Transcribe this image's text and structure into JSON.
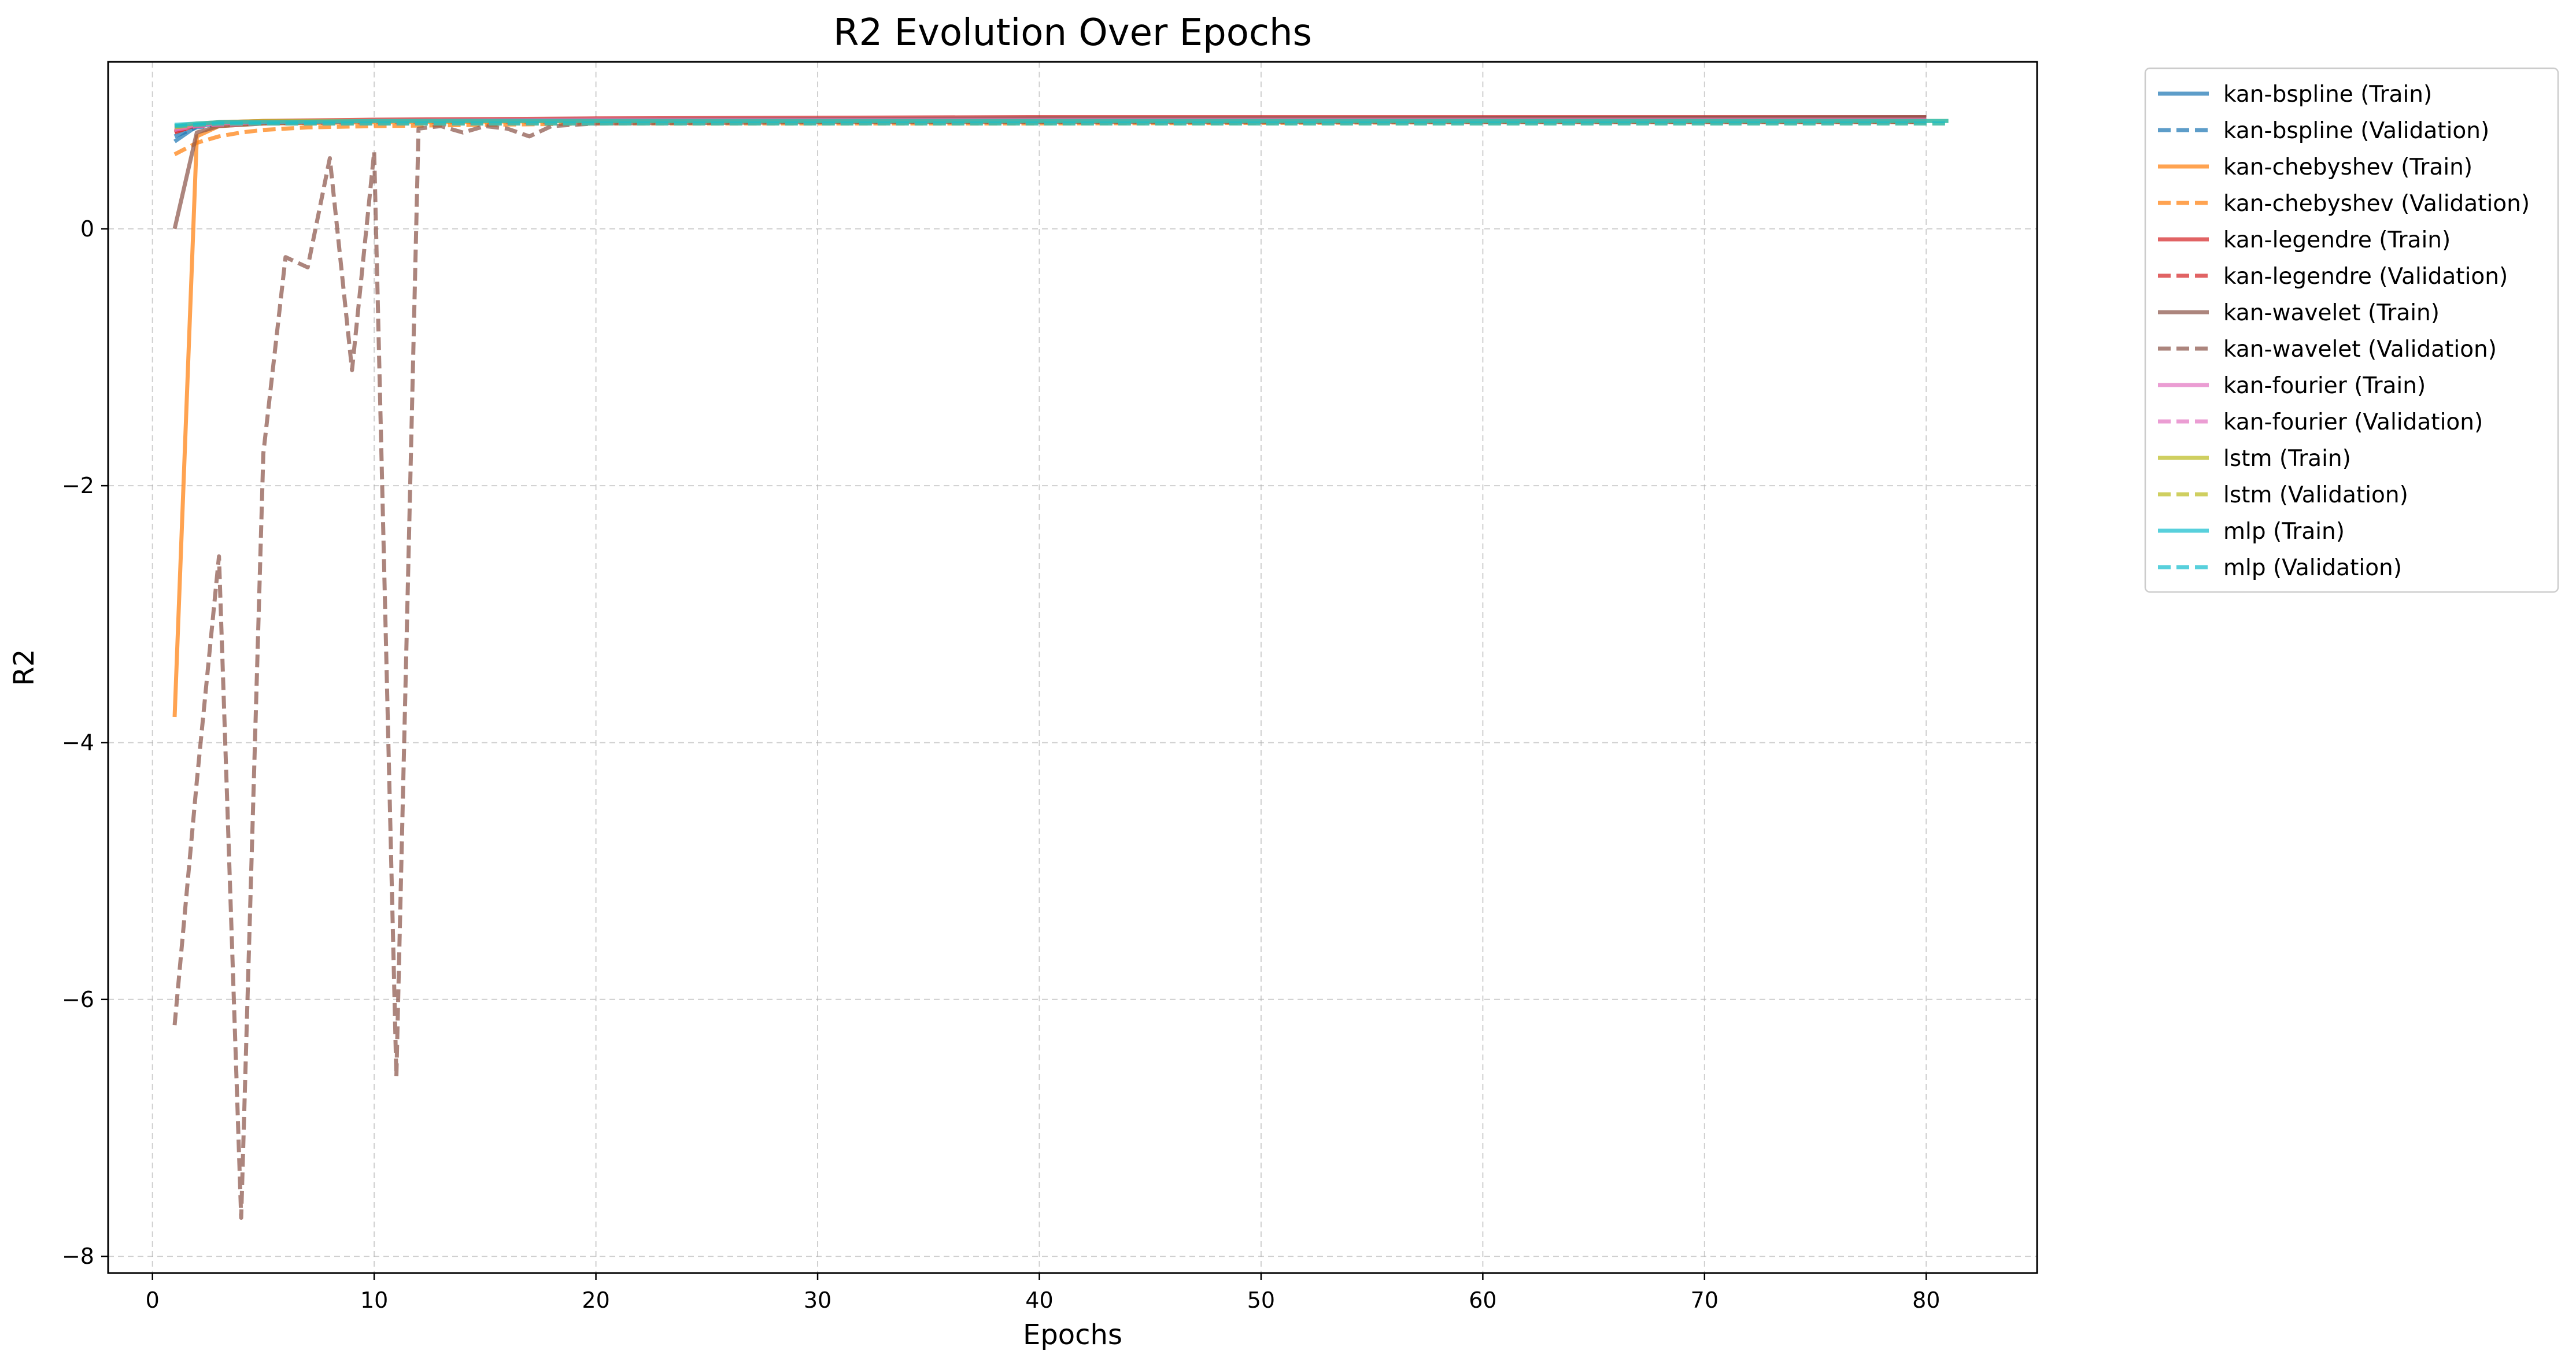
{
  "chart_data": {
    "type": "line",
    "title": "R2 Evolution Over Epochs",
    "xlabel": "Epochs",
    "ylabel": "R2",
    "xlim": [
      -2.0,
      85.0
    ],
    "ylim": [
      -8.13,
      1.3
    ],
    "xticks": [
      0,
      10,
      20,
      30,
      40,
      50,
      60,
      70,
      80
    ],
    "yticks": [
      -8,
      -6,
      -4,
      -2,
      0
    ],
    "grid": true,
    "legend_position": "outside-right-top",
    "series": [
      {
        "name": "kan-bspline (Train)",
        "color": "#1f77b4",
        "dash": "solid",
        "x": [
          1,
          2,
          3,
          5,
          10,
          20,
          40,
          60,
          80
        ],
        "y": [
          0.68,
          0.8,
          0.82,
          0.83,
          0.84,
          0.85,
          0.855,
          0.86,
          0.86
        ]
      },
      {
        "name": "kan-bspline (Validation)",
        "color": "#1f77b4",
        "dash": "dashed",
        "x": [
          1,
          2,
          3,
          5,
          10,
          20,
          40,
          60,
          80
        ],
        "y": [
          0.72,
          0.79,
          0.81,
          0.82,
          0.83,
          0.83,
          0.83,
          0.83,
          0.83
        ]
      },
      {
        "name": "kan-chebyshev (Train)",
        "color": "#ff7f0e",
        "dash": "solid",
        "x": [
          1,
          2,
          3,
          5,
          10,
          20,
          40,
          60,
          80
        ],
        "y": [
          -3.8,
          0.72,
          0.8,
          0.82,
          0.83,
          0.84,
          0.85,
          0.85,
          0.85
        ]
      },
      {
        "name": "kan-chebyshev (Validation)",
        "color": "#ff7f0e",
        "dash": "dashed",
        "x": [
          1,
          2,
          3,
          4,
          5,
          7,
          10,
          15,
          20,
          40,
          60,
          80
        ],
        "y": [
          0.58,
          0.67,
          0.72,
          0.75,
          0.77,
          0.79,
          0.8,
          0.81,
          0.82,
          0.82,
          0.83,
          0.83
        ]
      },
      {
        "name": "kan-legendre (Train)",
        "color": "#d62728",
        "dash": "solid",
        "x": [
          1,
          2,
          3,
          5,
          10,
          20,
          40,
          60,
          80
        ],
        "y": [
          0.75,
          0.81,
          0.83,
          0.84,
          0.85,
          0.86,
          0.87,
          0.87,
          0.87
        ]
      },
      {
        "name": "kan-legendre (Validation)",
        "color": "#d62728",
        "dash": "dashed",
        "x": [
          1,
          2,
          3,
          5,
          10,
          20,
          40,
          60,
          80
        ],
        "y": [
          0.76,
          0.8,
          0.81,
          0.82,
          0.83,
          0.83,
          0.83,
          0.83,
          0.83
        ]
      },
      {
        "name": "kan-wavelet (Train)",
        "color": "#8c564b",
        "dash": "solid",
        "x": [
          1,
          2,
          3,
          5,
          10,
          20,
          40,
          60,
          80
        ],
        "y": [
          0.0,
          0.75,
          0.8,
          0.82,
          0.84,
          0.85,
          0.86,
          0.86,
          0.87
        ]
      },
      {
        "name": "kan-wavelet (Validation)",
        "color": "#8c564b",
        "dash": "dashed",
        "x": [
          1,
          2,
          3,
          4,
          5,
          6,
          7,
          8,
          9,
          10,
          11,
          12,
          13,
          14,
          15,
          16,
          17,
          18,
          20,
          30,
          40,
          50,
          60,
          70,
          80
        ],
        "y": [
          -6.2,
          -4.3,
          -2.55,
          -7.7,
          -1.75,
          -0.22,
          -0.3,
          0.55,
          -1.1,
          0.6,
          -6.6,
          0.78,
          0.8,
          0.75,
          0.8,
          0.78,
          0.72,
          0.8,
          0.82,
          0.83,
          0.83,
          0.83,
          0.83,
          0.83,
          0.83
        ]
      },
      {
        "name": "kan-fourier (Train)",
        "color": "#e377c2",
        "dash": "solid",
        "x": [
          1,
          2,
          3,
          5,
          10,
          20,
          40,
          60,
          80
        ],
        "y": [
          0.78,
          0.81,
          0.82,
          0.83,
          0.84,
          0.85,
          0.85,
          0.85,
          0.85
        ]
      },
      {
        "name": "kan-fourier (Validation)",
        "color": "#e377c2",
        "dash": "dashed",
        "x": [
          1,
          2,
          3,
          5,
          10,
          20,
          40,
          60,
          80
        ],
        "y": [
          0.77,
          0.8,
          0.81,
          0.82,
          0.82,
          0.82,
          0.83,
          0.83,
          0.83
        ]
      },
      {
        "name": "lstm (Train)",
        "color": "#bcbd22",
        "dash": "solid",
        "x": [
          1,
          2,
          3,
          5,
          10,
          20,
          40,
          60,
          81
        ],
        "y": [
          0.8,
          0.82,
          0.83,
          0.84,
          0.84,
          0.84,
          0.84,
          0.84,
          0.84
        ]
      },
      {
        "name": "lstm (Validation)",
        "color": "#bcbd22",
        "dash": "dashed",
        "x": [
          1,
          2,
          3,
          5,
          10,
          20,
          40,
          60,
          81
        ],
        "y": [
          0.79,
          0.81,
          0.82,
          0.82,
          0.82,
          0.82,
          0.82,
          0.82,
          0.82
        ]
      },
      {
        "name": "mlp (Train)",
        "color": "#17becf",
        "dash": "solid",
        "x": [
          1,
          2,
          3,
          5,
          10,
          20,
          40,
          60,
          81
        ],
        "y": [
          0.81,
          0.82,
          0.83,
          0.83,
          0.84,
          0.84,
          0.84,
          0.84,
          0.84
        ]
      },
      {
        "name": "mlp (Validation)",
        "color": "#17becf",
        "dash": "dashed",
        "x": [
          1,
          2,
          3,
          5,
          10,
          20,
          40,
          60,
          81
        ],
        "y": [
          0.8,
          0.81,
          0.82,
          0.82,
          0.82,
          0.82,
          0.82,
          0.82,
          0.82
        ]
      }
    ]
  }
}
